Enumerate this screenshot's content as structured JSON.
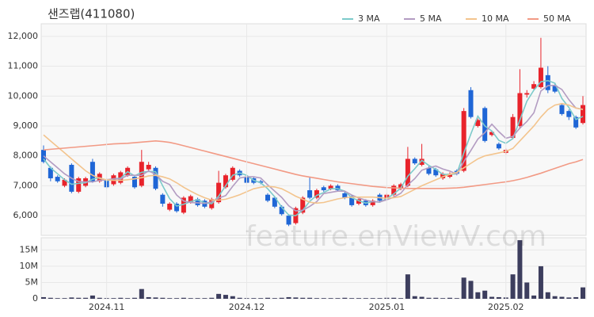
{
  "chart_data": [
    {
      "type": "candlestick",
      "title": "샌즈랩(411080)",
      "watermark": "feature.enViewV.com",
      "up_color": "#e8232b",
      "down_color": "#1f66d6",
      "grid": true,
      "legend": "top-right",
      "open": [
        8200,
        7600,
        7300,
        7000,
        7700,
        6800,
        7000,
        7800,
        7150,
        7200,
        7050,
        7100,
        7350,
        7300,
        7000,
        7550,
        7600,
        6700,
        6200,
        6400,
        6100,
        6450,
        6550,
        6500,
        6250,
        6450,
        6950,
        7200,
        7500,
        7300,
        7250,
        7150,
        6700,
        6600,
        6300,
        6000,
        5750,
        6100,
        6850,
        6600,
        6950,
        6900,
        7000,
        6750,
        6650,
        6400,
        6500,
        6350,
        6700,
        6550,
        6700,
        6900,
        7000,
        7900,
        7700,
        7600,
        7550,
        7250,
        7300,
        7500,
        7500,
        10200,
        9000,
        9600,
        8700,
        8400,
        8100,
        8600,
        9000,
        10050,
        10250,
        10300,
        10700,
        10350,
        9700,
        9500,
        9300,
        9100
      ],
      "high": [
        8350,
        7650,
        7350,
        7250,
        7750,
        7300,
        7300,
        7900,
        7450,
        7250,
        7400,
        7500,
        7650,
        7350,
        8200,
        7800,
        7650,
        6750,
        6450,
        6450,
        6650,
        6700,
        6600,
        6550,
        6600,
        7500,
        7400,
        7650,
        7550,
        7350,
        7300,
        7200,
        6750,
        6650,
        6350,
        6050,
        6300,
        6650,
        7300,
        6900,
        7000,
        7050,
        7050,
        6800,
        6700,
        6600,
        6550,
        6550,
        6750,
        6750,
        7050,
        7100,
        8300,
        7950,
        8400,
        7650,
        7600,
        7450,
        7450,
        7550,
        9600,
        10300,
        9250,
        9650,
        8850,
        8450,
        8250,
        9400,
        10900,
        10200,
        10500,
        11950,
        11000,
        10400,
        9750,
        9550,
        9350,
        10000
      ],
      "low": [
        7750,
        7150,
        7100,
        6950,
        6750,
        6750,
        6950,
        7100,
        7100,
        6900,
        7000,
        7050,
        7300,
        6900,
        6950,
        7500,
        6850,
        6300,
        6150,
        6100,
        6050,
        6400,
        6300,
        6250,
        6200,
        6400,
        6900,
        7150,
        7300,
        7050,
        7050,
        7050,
        6450,
        6250,
        6000,
        5650,
        5700,
        6050,
        6550,
        6550,
        6800,
        6850,
        6800,
        6550,
        6300,
        6350,
        6300,
        6300,
        6450,
        6500,
        6650,
        6850,
        6950,
        7700,
        7650,
        7350,
        7300,
        7200,
        7250,
        7350,
        7450,
        9250,
        8950,
        8450,
        8650,
        8200,
        8050,
        8550,
        8900,
        9950,
        10200,
        10250,
        10100,
        10100,
        9350,
        9200,
        8900,
        9050
      ],
      "close": [
        7800,
        7250,
        7150,
        7200,
        6800,
        7250,
        7250,
        7150,
        7400,
        6950,
        7350,
        7450,
        7600,
        6950,
        7800,
        7700,
        6900,
        6400,
        6400,
        6150,
        6600,
        6650,
        6350,
        6300,
        6550,
        7100,
        7350,
        7600,
        7350,
        7100,
        7100,
        7100,
        6500,
        6300,
        6050,
        5700,
        6250,
        6600,
        6600,
        6850,
        6850,
        7000,
        6850,
        6600,
        6350,
        6550,
        6350,
        6500,
        6500,
        6700,
        7000,
        7050,
        7900,
        7750,
        7900,
        7400,
        7350,
        7400,
        7400,
        7400,
        9500,
        9300,
        9200,
        8500,
        8800,
        8250,
        8200,
        9300,
        10100,
        10100,
        10400,
        10950,
        10200,
        10150,
        9400,
        9300,
        8950,
        9700
      ],
      "series": [
        {
          "name": "3 MA",
          "color": "#7ccaca",
          "values": [
            7900,
            7600,
            7400,
            7200,
            7050,
            7080,
            7100,
            7220,
            7270,
            7170,
            7230,
            7250,
            7470,
            7330,
            7450,
            7480,
            7470,
            7000,
            6570,
            6320,
            6380,
            6470,
            6530,
            6430,
            6400,
            6650,
            7000,
            7350,
            7430,
            7350,
            7180,
            7100,
            6900,
            6630,
            6280,
            6020,
            6000,
            6180,
            6480,
            6680,
            6770,
            6900,
            6900,
            6820,
            6600,
            6500,
            6420,
            6470,
            6450,
            6570,
            6730,
            6920,
            7320,
            7570,
            7850,
            7680,
            7550,
            7380,
            7380,
            7400,
            8100,
            8730,
            9330,
            9000,
            8830,
            8520,
            8420,
            8580,
            9200,
            9830,
            10200,
            10480,
            10520,
            10430,
            9920,
            9620,
            9220,
            9320
          ]
        },
        {
          "name": "5 MA",
          "color": "#b39cc2",
          "values": [
            8000,
            7800,
            7600,
            7400,
            7250,
            7140,
            7130,
            7130,
            7180,
            7200,
            7230,
            7230,
            7350,
            7350,
            7350,
            7500,
            7380,
            7150,
            7040,
            6690,
            6490,
            6440,
            6430,
            6410,
            6460,
            6590,
            6670,
            6980,
            7260,
            7300,
            7300,
            7260,
            7030,
            6820,
            6610,
            6330,
            6160,
            6180,
            6310,
            6470,
            6740,
            6780,
            6820,
            6820,
            6690,
            6590,
            6520,
            6470,
            6460,
            6530,
            6620,
            6750,
            7030,
            7240,
            7520,
            7600,
            7660,
            7560,
            7490,
            7390,
            7810,
            8180,
            8560,
            8780,
            9060,
            8810,
            8590,
            8650,
            8930,
            9150,
            9440,
            10170,
            10350,
            10360,
            10220,
            9880,
            9600,
            9560
          ]
        },
        {
          "name": "10 MA",
          "color": "#f3c48d",
          "values": [
            8700,
            8500,
            8300,
            8100,
            7900,
            7700,
            7500,
            7350,
            7250,
            7200,
            7180,
            7180,
            7200,
            7230,
            7270,
            7330,
            7350,
            7300,
            7230,
            7100,
            6950,
            6820,
            6700,
            6600,
            6520,
            6520,
            6550,
            6620,
            6700,
            6800,
            6900,
            6950,
            6980,
            6960,
            6900,
            6780,
            6650,
            6550,
            6450,
            6420,
            6440,
            6500,
            6560,
            6600,
            6620,
            6620,
            6620,
            6620,
            6600,
            6580,
            6600,
            6640,
            6760,
            6880,
            7000,
            7100,
            7200,
            7300,
            7380,
            7450,
            7600,
            7750,
            7900,
            8000,
            8050,
            8100,
            8150,
            8250,
            8500,
            8750,
            9000,
            9300,
            9550,
            9700,
            9750,
            9700,
            9600,
            9550
          ]
        },
        {
          "name": "50 MA",
          "color": "#f29a85",
          "values": [
            8200,
            8220,
            8240,
            8260,
            8280,
            8300,
            8320,
            8340,
            8360,
            8380,
            8400,
            8410,
            8420,
            8440,
            8460,
            8480,
            8500,
            8480,
            8450,
            8400,
            8340,
            8280,
            8220,
            8160,
            8100,
            8040,
            7980,
            7920,
            7860,
            7800,
            7740,
            7680,
            7620,
            7560,
            7500,
            7440,
            7380,
            7330,
            7290,
            7250,
            7210,
            7170,
            7130,
            7100,
            7070,
            7040,
            7010,
            6980,
            6960,
            6940,
            6930,
            6920,
            6910,
            6910,
            6910,
            6910,
            6910,
            6910,
            6920,
            6930,
            6950,
            6980,
            7010,
            7040,
            7070,
            7100,
            7130,
            7170,
            7220,
            7280,
            7350,
            7420,
            7500,
            7580,
            7660,
            7740,
            7800,
            7880
          ]
        }
      ],
      "ylim": [
        5340,
        12420
      ],
      "yticks": [
        {
          "value": 6000,
          "label": "6,000"
        },
        {
          "value": 7000,
          "label": "7,000"
        },
        {
          "value": 8000,
          "label": "8,000"
        },
        {
          "value": 9000,
          "label": "9,000"
        },
        {
          "value": 10000,
          "label": "10,000"
        },
        {
          "value": 11000,
          "label": "11,000"
        },
        {
          "value": 12000,
          "label": "12,000"
        }
      ]
    },
    {
      "type": "bar",
      "color": "#3d3e5e",
      "grid": true,
      "categories": [
        null,
        null,
        null,
        null,
        null,
        null,
        null,
        null,
        null,
        "2024.11",
        null,
        null,
        null,
        null,
        null,
        null,
        null,
        null,
        null,
        null,
        null,
        null,
        null,
        null,
        null,
        null,
        null,
        null,
        null,
        "2024.12",
        null,
        null,
        null,
        null,
        null,
        null,
        null,
        null,
        null,
        null,
        null,
        null,
        null,
        null,
        null,
        null,
        null,
        null,
        null,
        "2025.01",
        null,
        null,
        null,
        null,
        null,
        null,
        null,
        null,
        null,
        null,
        null,
        null,
        null,
        null,
        null,
        null,
        "2025.02",
        null,
        null,
        null,
        null,
        null,
        null,
        null,
        null,
        null,
        null,
        null
      ],
      "values": [
        500000,
        300000,
        200000,
        200000,
        400000,
        300000,
        300000,
        1000000,
        300000,
        200000,
        200000,
        300000,
        200000,
        300000,
        3000000,
        500000,
        400000,
        300000,
        200000,
        200000,
        300000,
        200000,
        200000,
        200000,
        300000,
        1500000,
        1200000,
        800000,
        300000,
        200000,
        200000,
        200000,
        300000,
        200000,
        300000,
        500000,
        400000,
        300000,
        300000,
        200000,
        200000,
        200000,
        200000,
        300000,
        200000,
        200000,
        200000,
        200000,
        200000,
        300000,
        300000,
        200000,
        7500000,
        800000,
        600000,
        300000,
        300000,
        200000,
        300000,
        200000,
        6500000,
        5500000,
        2000000,
        2500000,
        600000,
        500000,
        400000,
        7500000,
        18000000,
        5000000,
        1000000,
        10000000,
        2000000,
        800000,
        600000,
        400000,
        500000,
        3500000
      ],
      "ylim": [
        0,
        18750000
      ],
      "yticks": [
        0,
        {
          "value": 5000000,
          "label": "5M"
        },
        {
          "value": 10000000,
          "label": "10M"
        },
        {
          "value": 15000000,
          "label": "15M"
        }
      ]
    }
  ]
}
